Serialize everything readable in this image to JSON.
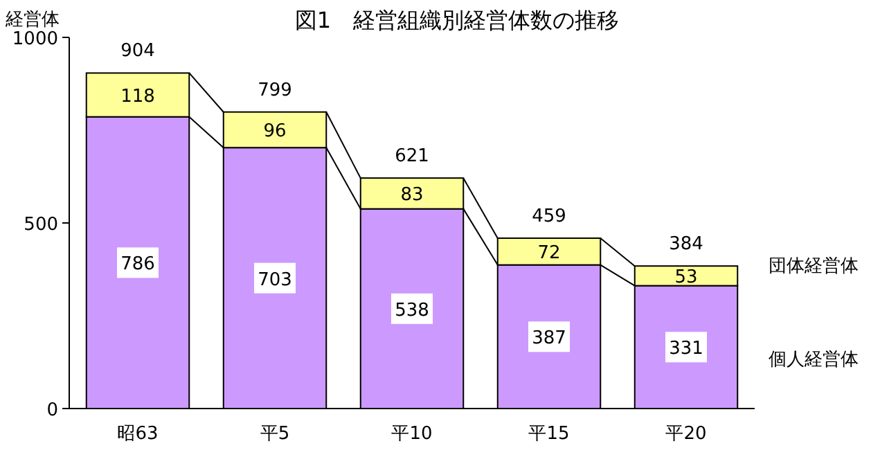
{
  "chart_data": {
    "type": "bar",
    "title": "図1　経営組織別経営体数の推移",
    "ylabel": "経営体",
    "categories": [
      "昭63",
      "平5",
      "平10",
      "平15",
      "平20"
    ],
    "stacked": true,
    "series": [
      {
        "name": "個人経営体",
        "color": "#cc99ff",
        "values": [
          786,
          703,
          538,
          387,
          331
        ]
      },
      {
        "name": "団体経営体",
        "color": "#ffff99",
        "values": [
          118,
          96,
          83,
          72,
          53
        ]
      }
    ],
    "totals": [
      "904",
      "799",
      "621",
      "459",
      "384"
    ],
    "data_labels": true,
    "ylim": [
      0,
      1000
    ],
    "yticks": [
      0,
      500,
      1000
    ],
    "legend": "right",
    "grid": false
  }
}
